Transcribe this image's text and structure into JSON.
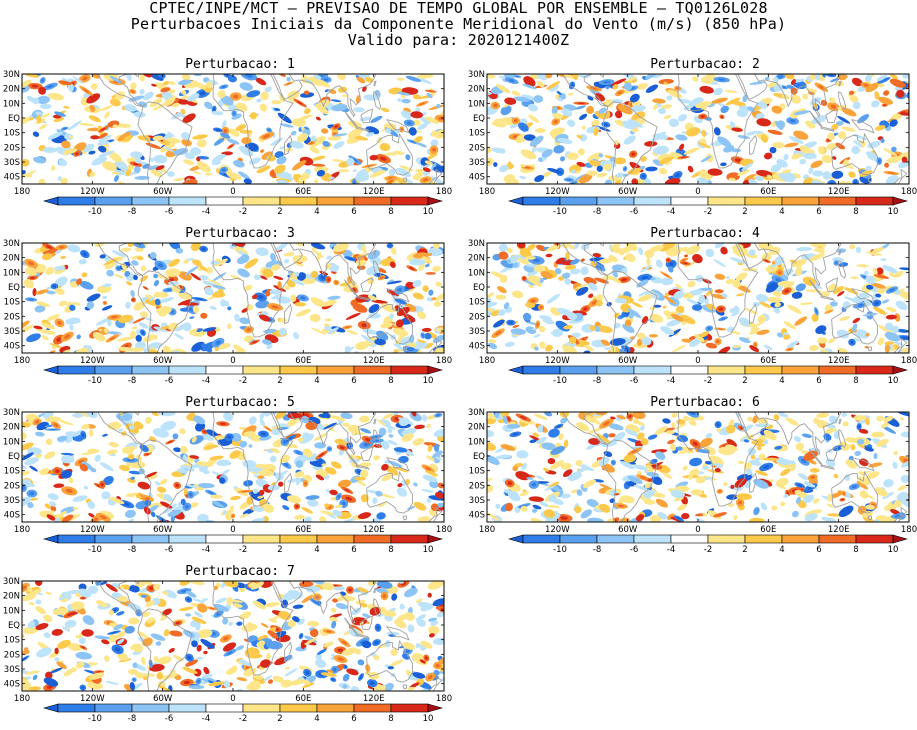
{
  "header": {
    "line1": "CPTEC/INPE/MCT – PREVISAO DE TEMPO GLOBAL POR ENSEMBLE – TQ0126L028",
    "line2": "Perturbacoes Iniciais da Componente Meridional do Vento (m/s) (850 hPa)",
    "line3": "Valido para: 2020121400Z"
  },
  "panels": [
    {
      "title": "Perturbacao: 1"
    },
    {
      "title": "Perturbacao: 2"
    },
    {
      "title": "Perturbacao: 3"
    },
    {
      "title": "Perturbacao: 4"
    },
    {
      "title": "Perturbacao: 5"
    },
    {
      "title": "Perturbacao: 6"
    },
    {
      "title": "Perturbacao: 7"
    }
  ],
  "lat_ticks": [
    "30N",
    "20N",
    "10N",
    "EQ",
    "10S",
    "20S",
    "30S",
    "40S"
  ],
  "lon_ticks": [
    "180",
    "120W",
    "60W",
    "0",
    "60E",
    "120E",
    "180"
  ],
  "colorbar": {
    "labels": [
      "-10",
      "-8",
      "-6",
      "-4",
      "-2",
      "2",
      "4",
      "6",
      "8",
      "10"
    ],
    "colors": [
      "#1a5fd6",
      "#2e7de8",
      "#5aa0ee",
      "#8cc4f5",
      "#bde3fb",
      "#ffffff",
      "#fde68a",
      "#fcc94a",
      "#f9a33a",
      "#ef6b26",
      "#d8281a",
      "#a50f15"
    ]
  },
  "map": {
    "lat_range": [
      -45,
      30
    ],
    "lon_range": [
      -180,
      180
    ],
    "land_outline_color": "#a0a0a0"
  }
}
